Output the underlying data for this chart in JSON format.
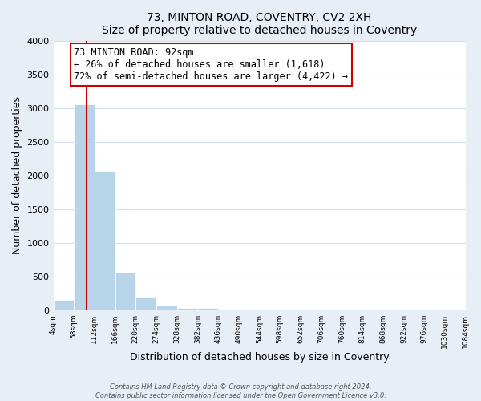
{
  "title": "73, MINTON ROAD, COVENTRY, CV2 2XH",
  "subtitle": "Size of property relative to detached houses in Coventry",
  "xlabel": "Distribution of detached houses by size in Coventry",
  "ylabel": "Number of detached properties",
  "bar_edges": [
    4,
    58,
    112,
    166,
    220,
    274,
    328,
    382,
    436,
    490,
    544,
    598,
    652,
    706,
    760,
    814,
    868,
    922,
    976,
    1030,
    1084
  ],
  "bar_heights": [
    150,
    3060,
    2060,
    560,
    205,
    65,
    40,
    30,
    0,
    0,
    0,
    0,
    0,
    0,
    0,
    0,
    0,
    0,
    0,
    0
  ],
  "bar_color": "#b8d4e8",
  "property_line_x": 92,
  "property_line_color": "#cc0000",
  "annotation_title": "73 MINTON ROAD: 92sqm",
  "annotation_line1": "← 26% of detached houses are smaller (1,618)",
  "annotation_line2": "72% of semi-detached houses are larger (4,422) →",
  "annotation_box_color": "#ffffff",
  "annotation_box_edge": "#cc0000",
  "ylim": [
    0,
    4000
  ],
  "yticks": [
    0,
    500,
    1000,
    1500,
    2000,
    2500,
    3000,
    3500,
    4000
  ],
  "tick_labels": [
    "4sqm",
    "58sqm",
    "112sqm",
    "166sqm",
    "220sqm",
    "274sqm",
    "328sqm",
    "382sqm",
    "436sqm",
    "490sqm",
    "544sqm",
    "598sqm",
    "652sqm",
    "706sqm",
    "760sqm",
    "814sqm",
    "868sqm",
    "922sqm",
    "976sqm",
    "1030sqm",
    "1084sqm"
  ],
  "footer_line1": "Contains HM Land Registry data © Crown copyright and database right 2024.",
  "footer_line2": "Contains public sector information licensed under the Open Government Licence v3.0.",
  "background_color": "#e8eef5",
  "plot_bg_color": "#ffffff",
  "grid_color": "#d0dce8"
}
